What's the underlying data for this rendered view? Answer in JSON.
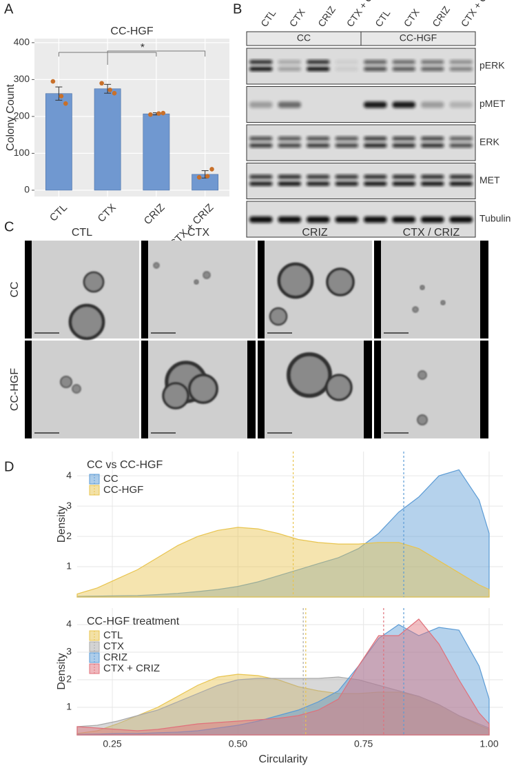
{
  "panel_labels": [
    "A",
    "B",
    "C",
    "D"
  ],
  "chart_data": [
    {
      "type": "bar",
      "title": "CC-HGF",
      "y_label": "Colony Count",
      "categories": [
        "CTL",
        "CTX",
        "CRIZ",
        "CTX + CRIZ"
      ],
      "values": [
        262,
        275,
        207,
        43
      ],
      "errors": [
        18,
        12,
        3,
        10
      ],
      "points": [
        [
          295,
          255,
          235
        ],
        [
          290,
          272,
          263
        ],
        [
          205,
          208,
          209
        ],
        [
          35,
          38,
          57
        ]
      ],
      "color": "#7098d0",
      "point_color": "#c8702a",
      "ylim": [
        -17,
        411
      ],
      "yticks": [
        0,
        100,
        200,
        300,
        400
      ],
      "grid": true,
      "significance": "*"
    },
    {
      "type": "area",
      "y_label": "Density",
      "legend_title": "CC vs CC-HGF",
      "x": [
        0.18,
        0.22,
        0.26,
        0.3,
        0.34,
        0.38,
        0.42,
        0.46,
        0.5,
        0.54,
        0.58,
        0.62,
        0.66,
        0.7,
        0.74,
        0.78,
        0.82,
        0.86,
        0.9,
        0.94,
        0.98,
        1.0
      ],
      "series": [
        {
          "name": "CC",
          "color": "#5b9bd5",
          "mean": 0.83,
          "values": [
            0.02,
            0.03,
            0.04,
            0.05,
            0.08,
            0.12,
            0.18,
            0.25,
            0.35,
            0.5,
            0.7,
            0.9,
            1.1,
            1.3,
            1.6,
            2.1,
            2.8,
            3.3,
            4.0,
            4.2,
            3.2,
            2.1
          ]
        },
        {
          "name": "CC-HGF",
          "color": "#e8c44e",
          "mean": 0.61,
          "values": [
            0.1,
            0.3,
            0.6,
            0.9,
            1.3,
            1.7,
            2.0,
            2.2,
            2.3,
            2.25,
            2.1,
            1.9,
            1.8,
            1.75,
            1.75,
            1.8,
            1.8,
            1.6,
            1.2,
            0.8,
            0.4,
            0.25
          ]
        }
      ],
      "xlim": [
        0.18,
        1.0
      ],
      "ylim": [
        0,
        4.8
      ],
      "yticks": [
        1,
        2,
        3,
        4
      ],
      "xticks": [
        0.25,
        {
          "value": 0.5,
          "label": "0.50"
        },
        0.75,
        {
          "value": 1.0,
          "label": "1.00"
        }
      ],
      "grid": true
    },
    {
      "type": "area",
      "y_label": "Density",
      "x_label": "Circularity",
      "legend_title": "CC-HGF treatment",
      "x": [
        0.18,
        0.22,
        0.26,
        0.3,
        0.34,
        0.38,
        0.42,
        0.46,
        0.5,
        0.54,
        0.58,
        0.62,
        0.66,
        0.7,
        0.74,
        0.78,
        0.82,
        0.86,
        0.9,
        0.94,
        0.98,
        1.0
      ],
      "series": [
        {
          "name": "CTL",
          "color": "#e8c44e",
          "mean": 0.635,
          "values": [
            0.05,
            0.15,
            0.4,
            0.7,
            1.0,
            1.4,
            1.8,
            2.1,
            2.2,
            2.15,
            2.0,
            1.75,
            1.6,
            1.5,
            1.5,
            1.55,
            1.55,
            1.4,
            1.1,
            0.7,
            0.35,
            0.2
          ]
        },
        {
          "name": "CTX",
          "color": "#a8a8a8",
          "mean": 0.63,
          "values": [
            0.3,
            0.35,
            0.5,
            0.7,
            0.9,
            1.2,
            1.5,
            1.8,
            2.0,
            2.05,
            2.05,
            2.05,
            2.05,
            2.1,
            2.0,
            1.8,
            1.6,
            1.4,
            1.1,
            0.7,
            0.4,
            0.25
          ]
        },
        {
          "name": "CRIZ",
          "color": "#5b9bd5",
          "mean": 0.83,
          "values": [
            0.02,
            0.03,
            0.05,
            0.05,
            0.08,
            0.1,
            0.15,
            0.25,
            0.35,
            0.5,
            0.7,
            0.9,
            1.2,
            1.6,
            2.5,
            3.5,
            4.0,
            3.6,
            3.9,
            3.8,
            2.5,
            1.3
          ]
        },
        {
          "name": "CTX + CRIZ",
          "color": "#e0707a",
          "mean": 0.79,
          "values": [
            0.3,
            0.25,
            0.2,
            0.15,
            0.2,
            0.3,
            0.4,
            0.45,
            0.5,
            0.55,
            0.6,
            0.7,
            0.9,
            1.3,
            2.5,
            3.6,
            3.6,
            4.2,
            3.3,
            2.0,
            0.8,
            0.4
          ]
        }
      ],
      "xlim": [
        0.18,
        1.0
      ],
      "ylim": [
        0,
        4.6
      ],
      "yticks": [
        1,
        2,
        3,
        4
      ],
      "xticks": [
        0.25,
        {
          "value": 0.5,
          "label": "0.50"
        },
        0.75,
        {
          "value": 1.0,
          "label": "1.00"
        }
      ],
      "grid": true
    }
  ],
  "blot": {
    "lanes": [
      "CTL",
      "CTX",
      "CRIZ",
      "CTX + CRIZ",
      "CTL",
      "CTX",
      "CRIZ",
      "CTX + CRIZ"
    ],
    "groups": [
      "CC",
      "CC-HGF"
    ],
    "proteins": [
      "pERK",
      "pMET",
      "ERK",
      "MET",
      "Tubulin"
    ]
  },
  "micrographs": {
    "columns": [
      "CTL",
      "CTX",
      "CRIZ",
      "CTX / CRIZ"
    ],
    "rows": [
      "CC",
      "CC-HGF"
    ]
  }
}
